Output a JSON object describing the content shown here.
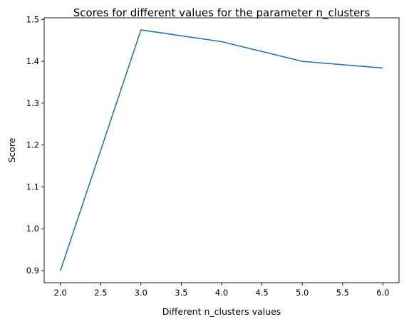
{
  "chart_data": {
    "type": "line",
    "title": "Scores for different values for the parameter n_clusters",
    "xlabel": "Different n_clusters values",
    "ylabel": "Score",
    "x": [
      2,
      3,
      4,
      5,
      6
    ],
    "series": [
      {
        "values": [
          0.899,
          1.475,
          1.447,
          1.4,
          1.384
        ]
      }
    ],
    "xlim": [
      1.8,
      6.2
    ],
    "ylim": [
      0.871,
      1.504
    ],
    "xticks": [
      2.0,
      2.5,
      3.0,
      3.5,
      4.0,
      4.5,
      5.0,
      5.5,
      6.0
    ],
    "xtick_labels": [
      "2.0",
      "2.5",
      "3.0",
      "3.5",
      "4.0",
      "4.5",
      "5.0",
      "5.5",
      "6.0"
    ],
    "yticks": [
      0.9,
      1.0,
      1.1,
      1.2,
      1.3,
      1.4,
      1.5
    ],
    "ytick_labels": [
      "0.9",
      "1.0",
      "1.1",
      "1.2",
      "1.3",
      "1.4",
      "1.5"
    ],
    "grid": false,
    "line_color": "#1f77b4"
  }
}
